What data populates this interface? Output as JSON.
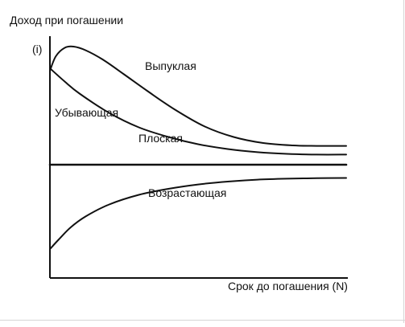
{
  "chart_data": {
    "type": "line",
    "title": "",
    "xlabel": "Срок до погашения (N)",
    "ylabel": "Доход при погашении",
    "y_marker": "(i)",
    "grid": false,
    "legend": "none",
    "xlim": [
      0,
      10
    ],
    "ylim": [
      0,
      10
    ],
    "colors": {
      "line": "#111111",
      "axis": "#111111",
      "frame": "#d6d6d6"
    },
    "series": [
      {
        "name": "Выпуклая",
        "x": [
          0,
          0.2,
          0.5,
          0.8,
          1.2,
          1.8,
          2.5,
          3.3,
          4.2,
          5.2,
          6.2,
          7.2,
          8.2,
          9.0,
          10.0
        ],
        "values": [
          8.6,
          9.2,
          9.55,
          9.6,
          9.45,
          9.05,
          8.45,
          7.75,
          7.0,
          6.3,
          5.85,
          5.6,
          5.5,
          5.48,
          5.48
        ]
      },
      {
        "name": "Убывающая",
        "x": [
          0,
          0.5,
          1.0,
          2.0,
          3.0,
          4.0,
          5.0,
          6.0,
          7.0,
          8.0,
          9.0,
          10.0
        ],
        "values": [
          8.7,
          8.15,
          7.65,
          6.85,
          6.25,
          5.85,
          5.55,
          5.35,
          5.22,
          5.15,
          5.12,
          5.12
        ]
      },
      {
        "name": "Плоская",
        "x": [
          0,
          10
        ],
        "values": [
          4.7,
          4.7
        ]
      },
      {
        "name": "Возрастающая",
        "x": [
          0,
          0.3,
          0.7,
          1.2,
          2.0,
          3.0,
          4.0,
          5.0,
          6.0,
          7.0,
          8.0,
          9.0,
          10.0
        ],
        "values": [
          1.2,
          1.6,
          2.1,
          2.55,
          3.05,
          3.45,
          3.7,
          3.88,
          4.0,
          4.08,
          4.12,
          4.14,
          4.15
        ]
      }
    ]
  }
}
